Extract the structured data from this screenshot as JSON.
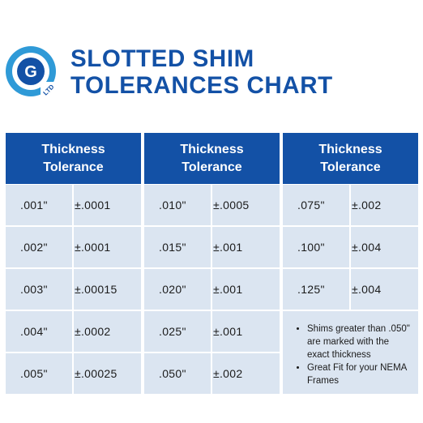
{
  "brand": {
    "logo_letter": "G",
    "logo_suffix": "LTD",
    "colors": {
      "primary": "#1351a6",
      "secondary": "#2f9ad7",
      "cell": "#dbe5f1"
    }
  },
  "title": {
    "line1": "SLOTTED SHIM",
    "line2": "TOLERANCES CHART"
  },
  "header": {
    "line1": "Thickness",
    "line2": "Tolerance"
  },
  "columns": [
    {
      "rows": [
        {
          "thickness": ".001\"",
          "tolerance": "±.0001"
        },
        {
          "thickness": ".002\"",
          "tolerance": "±.0001"
        },
        {
          "thickness": ".003\"",
          "tolerance": "±.00015"
        },
        {
          "thickness": ".004\"",
          "tolerance": "±.0002"
        },
        {
          "thickness": ".005\"",
          "tolerance": "±.00025"
        }
      ]
    },
    {
      "rows": [
        {
          "thickness": ".010\"",
          "tolerance": "±.0005"
        },
        {
          "thickness": ".015\"",
          "tolerance": "±.001"
        },
        {
          "thickness": ".020\"",
          "tolerance": "±.001"
        },
        {
          "thickness": ".025\"",
          "tolerance": "±.001"
        },
        {
          "thickness": ".050\"",
          "tolerance": "±.002"
        }
      ]
    },
    {
      "rows": [
        {
          "thickness": ".075\"",
          "tolerance": "±.002"
        },
        {
          "thickness": ".100\"",
          "tolerance": "±.004"
        },
        {
          "thickness": ".125\"",
          "tolerance": "±.004"
        }
      ]
    }
  ],
  "notes": [
    "Shims greater than .050\" are marked with the exact thickness",
    "Great Fit for your NEMA Frames"
  ]
}
